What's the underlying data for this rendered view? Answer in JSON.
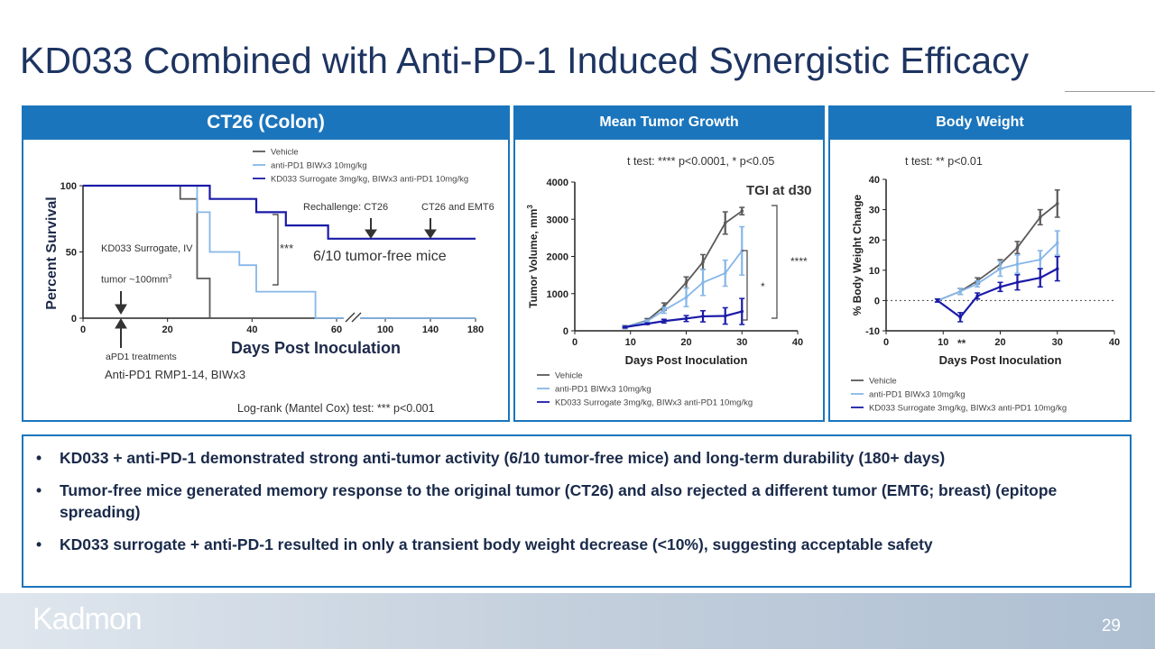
{
  "title": "KD033 Combined with Anti-PD-1 Induced Synergistic Efficacy",
  "headers": {
    "left": "CT26 (Colon)",
    "middle": "Mean Tumor Growth",
    "right": "Body Weight"
  },
  "colors": {
    "accent": "#1b75bc",
    "vehicle": "#5a5a5a",
    "anti_pd1": "#86b6e8",
    "combo": "#1a1aa8"
  },
  "survival_annotations": {
    "rechallenge1": "Rechallenge: CT26",
    "rechallenge2": "CT26 and EMT6",
    "significance": "***",
    "tumor_free": "6/10 tumor-free mice",
    "surrogate": "KD033 Surrogate, IV",
    "tumor_size": "tumor ~100mm",
    "tumor_size_sup": "3",
    "treatments": "aPD1 treatments",
    "antibody": "Anti-PD1 RMP1-14, BIWx3",
    "test": "Log-rank (Mantel Cox) test: *** p<0.001"
  },
  "growth_annotations": {
    "test": "t test: **** p<0.0001, * p<0.05",
    "tgi": "TGI at d30",
    "sig1": "****",
    "sig2": "*"
  },
  "weight_annotations": {
    "test": "t test: ** p<0.01",
    "sig": "**"
  },
  "chart_data": [
    {
      "type": "line",
      "subtype": "kaplan-meier-step",
      "xlabel": "Days Post Inoculation",
      "ylabel": "Percent Survival",
      "xticks": [
        0,
        20,
        40,
        60,
        100,
        140,
        180
      ],
      "yticks": [
        0,
        50,
        100
      ],
      "axis_break": [
        60,
        100
      ],
      "ylim": [
        0,
        100
      ],
      "legend": "top",
      "series": [
        {
          "name": "Vehicle",
          "x": [
            0,
            23,
            27,
            30,
            180
          ],
          "y": [
            100,
            90,
            30,
            0,
            0
          ]
        },
        {
          "name": "anti-PD1 BIWx3 10mg/kg",
          "x": [
            0,
            27,
            30,
            37,
            41,
            55,
            180
          ],
          "y": [
            100,
            80,
            50,
            40,
            20,
            0,
            0
          ]
        },
        {
          "name": "KD033 Surrogate 3mg/kg, BIWx3 anti-PD1 10mg/kg",
          "x": [
            0,
            30,
            41,
            48,
            58,
            180
          ],
          "y": [
            100,
            90,
            80,
            70,
            60,
            60
          ]
        }
      ]
    },
    {
      "type": "line",
      "xlabel": "Days Post Inoculation",
      "ylabel": "Tumor Volume, mm",
      "ylabel_sup": "3",
      "xlim": [
        0,
        40
      ],
      "ylim": [
        0,
        4000
      ],
      "xticks": [
        0,
        10,
        20,
        30,
        40
      ],
      "yticks": [
        0,
        1000,
        2000,
        3000,
        4000
      ],
      "legend": "bottom",
      "x": [
        9,
        13,
        16,
        20,
        23,
        27,
        30
      ],
      "series": [
        {
          "name": "Vehicle",
          "y": [
            100,
            280,
            650,
            1300,
            1850,
            2900,
            3220
          ],
          "err": [
            40,
            50,
            100,
            150,
            200,
            300,
            100
          ]
        },
        {
          "name": "anti-PD1 BIWx3 10mg/kg",
          "y": [
            100,
            260,
            550,
            900,
            1300,
            1550,
            2150
          ],
          "err": [
            30,
            30,
            80,
            250,
            350,
            350,
            650
          ]
        },
        {
          "name": "KD033 Surrogate 3mg/kg, BIWx3 anti-PD1 10mg/kg",
          "y": [
            100,
            190,
            260,
            330,
            390,
            400,
            520
          ],
          "err": [
            20,
            20,
            50,
            80,
            150,
            220,
            350
          ]
        }
      ]
    },
    {
      "type": "line",
      "xlabel": "Days Post Inoculation",
      "ylabel": "% Body Weight Change",
      "xlim": [
        0,
        40
      ],
      "ylim": [
        -10,
        40
      ],
      "xticks": [
        0,
        10,
        20,
        30,
        40
      ],
      "yticks": [
        -10,
        0,
        10,
        20,
        30,
        40
      ],
      "reference_line": 0,
      "legend": "bottom",
      "x": [
        9,
        13,
        16,
        20,
        23,
        27,
        30
      ],
      "series": [
        {
          "name": "Vehicle",
          "y": [
            0,
            3,
            6.5,
            12,
            17.5,
            27.5,
            32
          ],
          "err": [
            0.5,
            1,
            1,
            1.5,
            2,
            2.5,
            4.5
          ]
        },
        {
          "name": "anti-PD1 BIWx3 10mg/kg",
          "y": [
            0,
            3,
            5.5,
            10.5,
            12,
            13.5,
            19
          ],
          "err": [
            0.5,
            1,
            1,
            2.5,
            3,
            3,
            4
          ]
        },
        {
          "name": "KD033 Surrogate 3mg/kg, BIWx3 anti-PD1 10mg/kg",
          "y": [
            0,
            -5.5,
            1.5,
            4.5,
            6,
            7.5,
            10.5
          ],
          "err": [
            0.5,
            1.5,
            1,
            1.5,
            2.5,
            3,
            4
          ]
        }
      ]
    }
  ],
  "bullets": [
    "KD033 + anti-PD-1 demonstrated strong anti-tumor activity (6/10 tumor-free mice) and long-term durability (180+ days)",
    "Tumor-free mice generated memory response to the original tumor (CT26) and also rejected a different tumor (EMT6; breast) (epitope spreading)",
    "KD033 surrogate + anti-PD-1 resulted in only a transient body weight decrease (<10%), suggesting acceptable safety"
  ],
  "bullet_symbol": "•",
  "footer": {
    "logo": "Kadmon",
    "page_number": "29"
  }
}
